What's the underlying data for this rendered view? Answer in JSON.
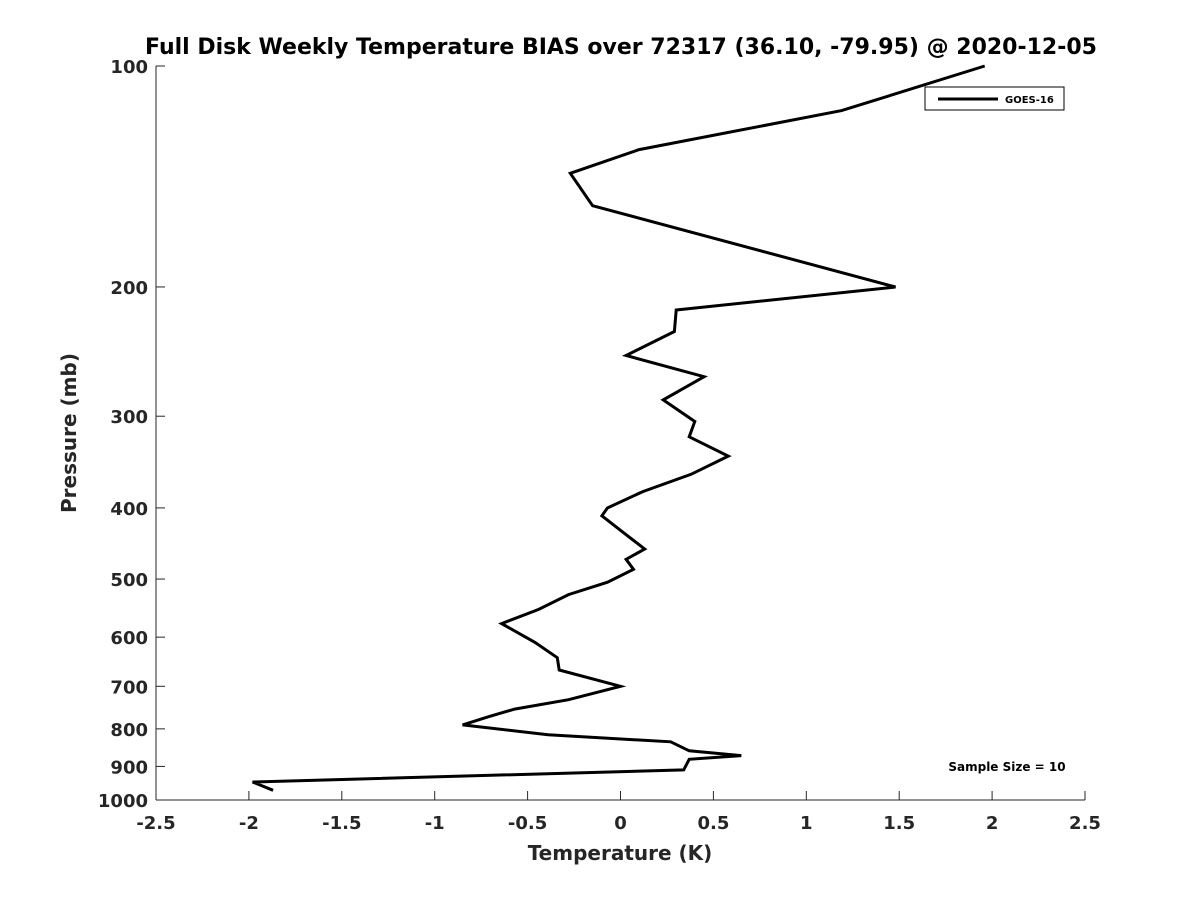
{
  "chart_data": {
    "type": "line",
    "title": "Full Disk Weekly Temperature BIAS over 72317 (36.10, -79.95) @ 2020-12-05",
    "xlabel": "Temperature (K)",
    "ylabel": "Pressure (mb)",
    "xlim": [
      -2.5,
      2.5
    ],
    "ylim": [
      1000,
      100
    ],
    "y_scale": "log",
    "x_ticks": [
      "-2.5",
      "-2",
      "-1.5",
      "-1",
      "-0.5",
      "0",
      "0.5",
      "1",
      "1.5",
      "2",
      "2.5"
    ],
    "y_ticks": [
      "100",
      "200",
      "300",
      "400",
      "500",
      "600",
      "700",
      "800",
      "900",
      "1000"
    ],
    "grid": false,
    "legend": {
      "position": "top-right",
      "entries": [
        "GOES-16"
      ]
    },
    "annotation": "Sample Size = 10",
    "series": [
      {
        "name": "GOES-16",
        "color": "#000000",
        "x": [
          1.96,
          1.19,
          0.1,
          -0.27,
          -0.15,
          1.48,
          0.3,
          0.29,
          0.03,
          0.45,
          0.23,
          0.4,
          0.37,
          0.58,
          0.38,
          0.12,
          -0.07,
          -0.1,
          0.03,
          0.13,
          0.03,
          0.07,
          -0.07,
          -0.28,
          -0.44,
          -0.64,
          -0.46,
          -0.34,
          -0.33,
          0.0,
          -0.28,
          -0.57,
          -0.71,
          -0.85,
          -0.39,
          0.27,
          0.37,
          0.65,
          0.37,
          0.34,
          -1.98,
          -1.87
        ],
        "y": [
          100,
          115,
          130,
          140,
          155,
          200,
          215,
          230,
          248,
          265,
          285,
          305,
          320,
          340,
          360,
          380,
          400,
          410,
          435,
          455,
          470,
          485,
          505,
          525,
          550,
          575,
          610,
          640,
          665,
          700,
          730,
          752,
          770,
          790,
          815,
          833,
          857,
          870,
          880,
          910,
          945,
          970
        ]
      }
    ]
  }
}
